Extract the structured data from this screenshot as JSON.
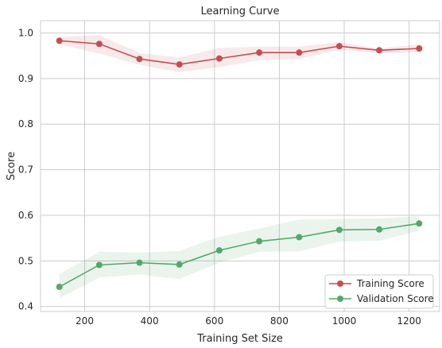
{
  "chart_data": {
    "type": "line",
    "title": "Learning Curve",
    "xlabel": "Training Set Size",
    "ylabel": "Score",
    "xlim": [
      64,
      1294
    ],
    "ylim": [
      0.389,
      1.027
    ],
    "x_ticks": [
      200,
      400,
      600,
      800,
      1000,
      1200
    ],
    "x_tick_labels": [
      "200",
      "400",
      "600",
      "800",
      "1000",
      "1200"
    ],
    "y_ticks": [
      0.4,
      0.5,
      0.6,
      0.7,
      0.8,
      0.9,
      1.0
    ],
    "y_tick_labels": [
      "0.4",
      "0.5",
      "0.6",
      "0.7",
      "0.8",
      "0.9",
      "1.0"
    ],
    "grid": true,
    "legend_position": "lower-right",
    "x": [
      122,
      245,
      369,
      492,
      615,
      738,
      861,
      985,
      1108,
      1231
    ],
    "series": [
      {
        "name": "Training Score",
        "color": "#c44e52",
        "values": [
          0.983,
          0.976,
          0.943,
          0.931,
          0.944,
          0.957,
          0.957,
          0.971,
          0.962,
          0.966
        ],
        "band_lower": [
          0.975,
          0.955,
          0.93,
          0.914,
          0.925,
          0.94,
          0.943,
          0.963,
          0.956,
          0.957
        ],
        "band_upper": [
          0.991,
          0.995,
          0.956,
          0.946,
          0.967,
          0.97,
          0.97,
          0.98,
          0.966,
          0.975
        ]
      },
      {
        "name": "Validation Score",
        "color": "#55a868",
        "values": [
          0.443,
          0.491,
          0.496,
          0.492,
          0.523,
          0.543,
          0.552,
          0.568,
          0.569,
          0.582
        ],
        "band_lower": [
          0.418,
          0.463,
          0.47,
          0.46,
          0.496,
          0.52,
          0.521,
          0.542,
          0.544,
          0.566
        ],
        "band_upper": [
          0.471,
          0.52,
          0.518,
          0.522,
          0.553,
          0.571,
          0.591,
          0.592,
          0.593,
          0.598
        ]
      }
    ]
  }
}
